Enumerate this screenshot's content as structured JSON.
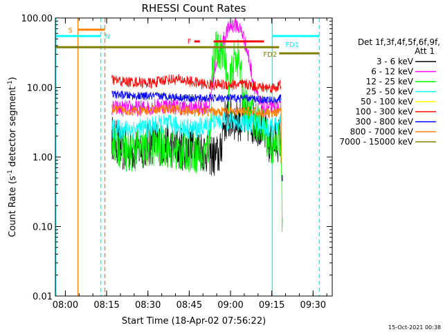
{
  "chart_data": {
    "type": "line",
    "title": "RHESSI Count Rates",
    "xlabel": "Start Time (18-Apr-02 07:56:22)",
    "ylabel_prefix": "Count Rate (s",
    "ylabel_sup1": "-1",
    "ylabel_mid": " detector segment",
    "ylabel_sup2": "-1",
    "ylabel_suffix": ")",
    "x_unit": "minutes after 07:56:22",
    "xlim": [
      0,
      100.6
    ],
    "ylim": [
      0.01,
      100
    ],
    "y_scale": "log",
    "x_ticks": [
      {
        "t": 3.63,
        "label": "08:00"
      },
      {
        "t": 18.63,
        "label": "08:15"
      },
      {
        "t": 33.63,
        "label": "08:30"
      },
      {
        "t": 48.63,
        "label": "08:45"
      },
      {
        "t": 63.63,
        "label": "09:00"
      },
      {
        "t": 78.63,
        "label": "09:15"
      },
      {
        "t": 93.63,
        "label": "09:30"
      }
    ],
    "y_ticks": [
      {
        "v": 0.01,
        "label": "0.01"
      },
      {
        "v": 0.1,
        "label": "0.10"
      },
      {
        "v": 1,
        "label": "1.00"
      },
      {
        "v": 10,
        "label": "10.00"
      },
      {
        "v": 100,
        "label": "100.00"
      }
    ],
    "legend": {
      "placement": "right",
      "header": [
        "Det 1f,3f,4f,5f,6f,9f,",
        "Att 1"
      ],
      "entries": [
        {
          "label": "3 - 6 keV",
          "color": "#000000"
        },
        {
          "label": "6 - 12 keV",
          "color": "#ff00ff"
        },
        {
          "label": "12 - 25 keV",
          "color": "#00ff00"
        },
        {
          "label": "25 - 50 keV",
          "color": "#00ffff"
        },
        {
          "label": "50 - 100 keV",
          "color": "#ffff00"
        },
        {
          "label": "100 - 300 keV",
          "color": "#ff0000"
        },
        {
          "label": "300 - 800 keV",
          "color": "#0000ff"
        },
        {
          "label": "800 - 7000 keV",
          "color": "#ff8000"
        },
        {
          "label": "7000 - 15000 keV",
          "color": "#808000"
        }
      ]
    },
    "series": [
      {
        "label": "3 - 6 keV",
        "color": "#000000",
        "t0": 20.5,
        "t1": 82,
        "points": [
          [
            20.5,
            2
          ],
          [
            25,
            1.2
          ],
          [
            30,
            1.3
          ],
          [
            35,
            1.6
          ],
          [
            40,
            1.5
          ],
          [
            45,
            1.3
          ],
          [
            50,
            1.4
          ],
          [
            55,
            1.2
          ],
          [
            58,
            1
          ],
          [
            60,
            1.1
          ],
          [
            61,
            3
          ],
          [
            62,
            3.5
          ],
          [
            65,
            3.5
          ],
          [
            70,
            3.2
          ],
          [
            75,
            2.9
          ],
          [
            78,
            1.5
          ],
          [
            80,
            1.6
          ],
          [
            82,
            2
          ]
        ],
        "noise": 0.32
      },
      {
        "label": "6 - 12 keV",
        "color": "#ff00ff",
        "t0": 20.5,
        "t1": 82,
        "points": [
          [
            20.5,
            5
          ],
          [
            30,
            5
          ],
          [
            40,
            5.5
          ],
          [
            50,
            5
          ],
          [
            56,
            5.5
          ],
          [
            58,
            20
          ],
          [
            60,
            35
          ],
          [
            62,
            60
          ],
          [
            64,
            80
          ],
          [
            66,
            80
          ],
          [
            68,
            60
          ],
          [
            70,
            30
          ],
          [
            72,
            12
          ],
          [
            74,
            6
          ],
          [
            76,
            5
          ],
          [
            80,
            5
          ],
          [
            82,
            5
          ]
        ],
        "noise": 0.12
      },
      {
        "label": "12 - 25 keV",
        "color": "#00ff00",
        "t0": 20.5,
        "t1": 82.5,
        "points": [
          [
            20.5,
            1.8
          ],
          [
            25,
            1.2
          ],
          [
            30,
            1.2
          ],
          [
            35,
            1.4
          ],
          [
            40,
            1.4
          ],
          [
            45,
            1.2
          ],
          [
            50,
            1.2
          ],
          [
            54,
            1
          ],
          [
            56,
            1.5
          ],
          [
            57,
            20
          ],
          [
            58,
            35
          ],
          [
            60,
            30
          ],
          [
            61,
            40
          ],
          [
            62,
            20
          ],
          [
            63,
            8
          ],
          [
            64,
            15
          ],
          [
            65,
            25
          ],
          [
            66,
            30
          ],
          [
            67,
            20
          ],
          [
            68,
            8
          ],
          [
            70,
            4
          ],
          [
            72,
            4
          ],
          [
            74,
            3
          ],
          [
            76,
            2.5
          ],
          [
            78,
            1.4
          ],
          [
            80,
            1.4
          ],
          [
            82,
            2
          ],
          [
            82.5,
            0.07
          ]
        ],
        "noise": 0.3
      },
      {
        "label": "25 - 50 keV",
        "color": "#00ffff",
        "t0": 20.5,
        "t1": 82,
        "points": [
          [
            20.5,
            2.5
          ],
          [
            30,
            2.5
          ],
          [
            40,
            3
          ],
          [
            50,
            2.5
          ],
          [
            55,
            2.8
          ],
          [
            58,
            3.5
          ],
          [
            62,
            3.3
          ],
          [
            66,
            3.2
          ],
          [
            70,
            3.2
          ],
          [
            75,
            3
          ],
          [
            78,
            2.5
          ],
          [
            82,
            3
          ]
        ],
        "noise": 0.15
      },
      {
        "label": "100 - 300 keV",
        "color": "#ff0000",
        "t0": 20.5,
        "t1": 82,
        "points": [
          [
            20.5,
            13
          ],
          [
            25,
            12
          ],
          [
            30,
            12
          ],
          [
            35,
            11.5
          ],
          [
            40,
            13
          ],
          [
            45,
            13
          ],
          [
            50,
            12
          ],
          [
            55,
            11
          ],
          [
            60,
            11
          ],
          [
            65,
            11
          ],
          [
            70,
            11
          ],
          [
            75,
            10
          ],
          [
            80,
            10
          ],
          [
            82,
            11
          ]
        ],
        "noise": 0.08
      },
      {
        "label": "300 - 800 keV",
        "color": "#0000ff",
        "t0": 20.5,
        "t1": 82,
        "points": [
          [
            20.5,
            8
          ],
          [
            30,
            7.5
          ],
          [
            40,
            7.5
          ],
          [
            50,
            7
          ],
          [
            60,
            7
          ],
          [
            70,
            7
          ],
          [
            80,
            6.5
          ],
          [
            82,
            7
          ]
        ],
        "noise": 0.06
      },
      {
        "label": "800 - 7000 keV",
        "color": "#ff8000",
        "t0": 20.5,
        "t1": 82,
        "points": [
          [
            20.5,
            5
          ],
          [
            30,
            4.5
          ],
          [
            40,
            5
          ],
          [
            50,
            4.5
          ],
          [
            60,
            4.5
          ],
          [
            70,
            4.5
          ],
          [
            80,
            4.2
          ],
          [
            82,
            5
          ]
        ],
        "noise": 0.07
      }
    ],
    "orange_drop": {
      "t": 82,
      "v_from": 5,
      "v_to": 0.8,
      "color": "#ff8000"
    },
    "blue_blip": {
      "t": 82.4,
      "v_from": 0.45,
      "v_to": 0.55,
      "color": "#0000ff"
    },
    "vertical_lines": [
      {
        "t": 0.2,
        "color": "#00ffff",
        "style": "solid"
      },
      {
        "t": 8.2,
        "color": "#ff8000",
        "style": "solid"
      },
      {
        "t": 16.5,
        "color": "#00ffff",
        "style": "dashed"
      },
      {
        "t": 18.0,
        "color": "#ff8000",
        "style": "dashed"
      },
      {
        "t": 78.8,
        "color": "#00ffff",
        "style": "solid"
      },
      {
        "t": 95.9,
        "color": "#00ffff",
        "style": "dashed"
      }
    ],
    "flag_bars": [
      {
        "label": "S",
        "color": "#ff8000",
        "t0": 8.2,
        "t1": 18.0,
        "v": 68
      },
      {
        "label": "N",
        "color": "#00ffff",
        "t0": 0.2,
        "t1": 16.5,
        "v": 55
      },
      {
        "label": "",
        "color": "#808000",
        "t0": 0.2,
        "t1": 81.3,
        "v": 38
      },
      {
        "label": "F",
        "color": "#ff0000",
        "t0": 50.5,
        "t1": 52.5,
        "v": 46
      },
      {
        "label": "",
        "color": "#ff0000",
        "t0": 57.5,
        "t1": 75.8,
        "v": 46
      },
      {
        "label": "FD1",
        "color": "#00ffff",
        "t0": 78.8,
        "t1": 95.9,
        "v": 55
      },
      {
        "label": "FD2",
        "color": "#808000",
        "t0": 81.3,
        "t1": 95.9,
        "v": 31
      }
    ],
    "footer_timestamp": "15-Oct-2021 00:38"
  }
}
